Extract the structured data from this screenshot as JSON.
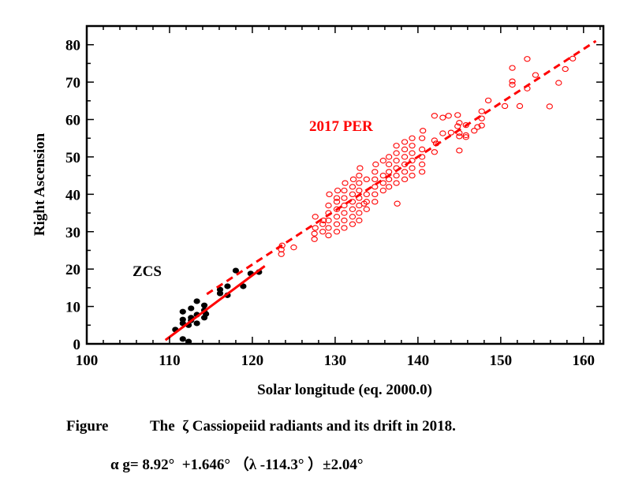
{
  "chart_data": {
    "type": "scatter",
    "xlabel": "Solar longitude (eq. 2000.0)",
    "ylabel": "Right Ascension",
    "xlim": [
      100,
      162.4
    ],
    "ylim": [
      0,
      85
    ],
    "xticks": [
      100,
      110,
      120,
      130,
      140,
      150,
      160
    ],
    "yticks": [
      0,
      10,
      20,
      30,
      40,
      50,
      60,
      70,
      80
    ],
    "grid": false,
    "annotations": [
      {
        "text": "ZCS",
        "color": "#000000"
      },
      {
        "text": "2017 PER",
        "color": "#ff0000"
      }
    ],
    "series": [
      {
        "name": "ZCS",
        "marker": "filled-circle",
        "color": "#000000",
        "points": [
          [
            110.7,
            3.8
          ],
          [
            111.6,
            1.3
          ],
          [
            112.3,
            0.6
          ],
          [
            111.6,
            5.5
          ],
          [
            111.6,
            8.6
          ],
          [
            111.6,
            6.5
          ],
          [
            112.3,
            5.0
          ],
          [
            112.6,
            9.5
          ],
          [
            112.6,
            7.0
          ],
          [
            112.6,
            6.3
          ],
          [
            113.3,
            11.4
          ],
          [
            113.3,
            7.8
          ],
          [
            113.3,
            5.5
          ],
          [
            114.2,
            10.3
          ],
          [
            114.2,
            9.0
          ],
          [
            114.2,
            7.0
          ],
          [
            114.4,
            8.0
          ],
          [
            116.1,
            14.5
          ],
          [
            116.1,
            13.5
          ],
          [
            117.0,
            15.4
          ],
          [
            117.0,
            13.0
          ],
          [
            118.0,
            19.6
          ],
          [
            118.9,
            15.4
          ],
          [
            119.8,
            18.8
          ],
          [
            120.8,
            19.2
          ]
        ]
      },
      {
        "name": "2017 PER",
        "marker": "open-circle",
        "color": "#ff0000",
        "points": [
          [
            123.5,
            24
          ],
          [
            123.5,
            25.2
          ],
          [
            123.6,
            26.3
          ],
          [
            125,
            25.8
          ],
          [
            127.5,
            28
          ],
          [
            127.5,
            29.5
          ],
          [
            127.6,
            31
          ],
          [
            127.6,
            34
          ],
          [
            128.5,
            30
          ],
          [
            128.5,
            32
          ],
          [
            128.6,
            33
          ],
          [
            129.2,
            29
          ],
          [
            129.2,
            31
          ],
          [
            129.2,
            33
          ],
          [
            129.2,
            35
          ],
          [
            129.2,
            37
          ],
          [
            129.3,
            40
          ],
          [
            130.2,
            30
          ],
          [
            130.2,
            32
          ],
          [
            130.2,
            34
          ],
          [
            130.2,
            36
          ],
          [
            130.2,
            38
          ],
          [
            130.2,
            39
          ],
          [
            130.3,
            41
          ],
          [
            131.1,
            31
          ],
          [
            131.1,
            33
          ],
          [
            131.1,
            35
          ],
          [
            131.1,
            37
          ],
          [
            131.1,
            39
          ],
          [
            131.1,
            41
          ],
          [
            131.2,
            43
          ],
          [
            132.1,
            32
          ],
          [
            132.1,
            34
          ],
          [
            132.1,
            36
          ],
          [
            132.1,
            38
          ],
          [
            132.1,
            40
          ],
          [
            132.1,
            42
          ],
          [
            132.2,
            44
          ],
          [
            132.9,
            33
          ],
          [
            132.9,
            35
          ],
          [
            132.9,
            37
          ],
          [
            132.9,
            39
          ],
          [
            132.9,
            41
          ],
          [
            132.9,
            43
          ],
          [
            132.9,
            45
          ],
          [
            133.0,
            47
          ],
          [
            133.8,
            36
          ],
          [
            133.8,
            38
          ],
          [
            133.8,
            40
          ],
          [
            133.8,
            44
          ],
          [
            133.5,
            37.5
          ],
          [
            134.8,
            38
          ],
          [
            134.8,
            40
          ],
          [
            134.8,
            42
          ],
          [
            134.8,
            44
          ],
          [
            134.8,
            46
          ],
          [
            134.9,
            48
          ],
          [
            135.8,
            41
          ],
          [
            135.8,
            43
          ],
          [
            135.8,
            45
          ],
          [
            135.8,
            49
          ],
          [
            136.5,
            42
          ],
          [
            136.5,
            44
          ],
          [
            136.5,
            46
          ],
          [
            136.5,
            48
          ],
          [
            136.5,
            50
          ],
          [
            137.5,
            37.5
          ],
          [
            137.4,
            43
          ],
          [
            137.4,
            45
          ],
          [
            137.4,
            47
          ],
          [
            137.4,
            49
          ],
          [
            137.4,
            51
          ],
          [
            137.4,
            53
          ],
          [
            138.4,
            44
          ],
          [
            138.4,
            46
          ],
          [
            138.4,
            48
          ],
          [
            138.4,
            50
          ],
          [
            138.4,
            52
          ],
          [
            138.4,
            54
          ],
          [
            139.3,
            45
          ],
          [
            139.3,
            47
          ],
          [
            139.3,
            49
          ],
          [
            139.3,
            51
          ],
          [
            139.3,
            53
          ],
          [
            139.3,
            55
          ],
          [
            140.5,
            46
          ],
          [
            140.5,
            48
          ],
          [
            140.5,
            50
          ],
          [
            140.5,
            52
          ],
          [
            140.5,
            55
          ],
          [
            140.6,
            57
          ],
          [
            142.0,
            61.0
          ],
          [
            143.0,
            60.5
          ],
          [
            143.7,
            61.0
          ],
          [
            144.8,
            61.2
          ],
          [
            143.0,
            56.3
          ],
          [
            144.0,
            56.5
          ],
          [
            144.8,
            58.2
          ],
          [
            145.0,
            59.1
          ],
          [
            145.0,
            56.4
          ],
          [
            145.0,
            55.5
          ],
          [
            145.8,
            58.5
          ],
          [
            145.8,
            55.8
          ],
          [
            145.8,
            55.3
          ],
          [
            146.8,
            57.0
          ],
          [
            142.0,
            54.4
          ],
          [
            142.2,
            53.6
          ],
          [
            142.0,
            51.3
          ],
          [
            145.0,
            51.7
          ],
          [
            147.7,
            62.2
          ],
          [
            147.7,
            60.3
          ],
          [
            147.7,
            58.4
          ],
          [
            147.2,
            58.0
          ],
          [
            148.5,
            65.1
          ],
          [
            150.5,
            63.6
          ],
          [
            151.4,
            73.8
          ],
          [
            151.4,
            70.2
          ],
          [
            151.4,
            69.3
          ],
          [
            152.3,
            63.6
          ],
          [
            153.2,
            76.2
          ],
          [
            153.2,
            68.3
          ],
          [
            154.2,
            71.9
          ],
          [
            155.9,
            63.5
          ],
          [
            157.0,
            69.8
          ],
          [
            157.8,
            73.5
          ],
          [
            158.7,
            76.3
          ]
        ]
      }
    ],
    "fit_lines": [
      {
        "style": "solid",
        "color": "#ff0000",
        "from": [
          109.5,
          1.0
        ],
        "to": [
          121.5,
          20.8
        ]
      },
      {
        "style": "dashed",
        "color": "#ff0000",
        "from": [
          114.5,
          13.3
        ],
        "to": [
          161.5,
          81.0
        ]
      }
    ]
  },
  "caption": {
    "line1_label": "Figure",
    "line1_text": "The  ζ Cassiopeiid radiants and its drift in 2018.",
    "line2": "α g= 8.92°  +1.646° （λ -114.3° ）±2.04°"
  }
}
